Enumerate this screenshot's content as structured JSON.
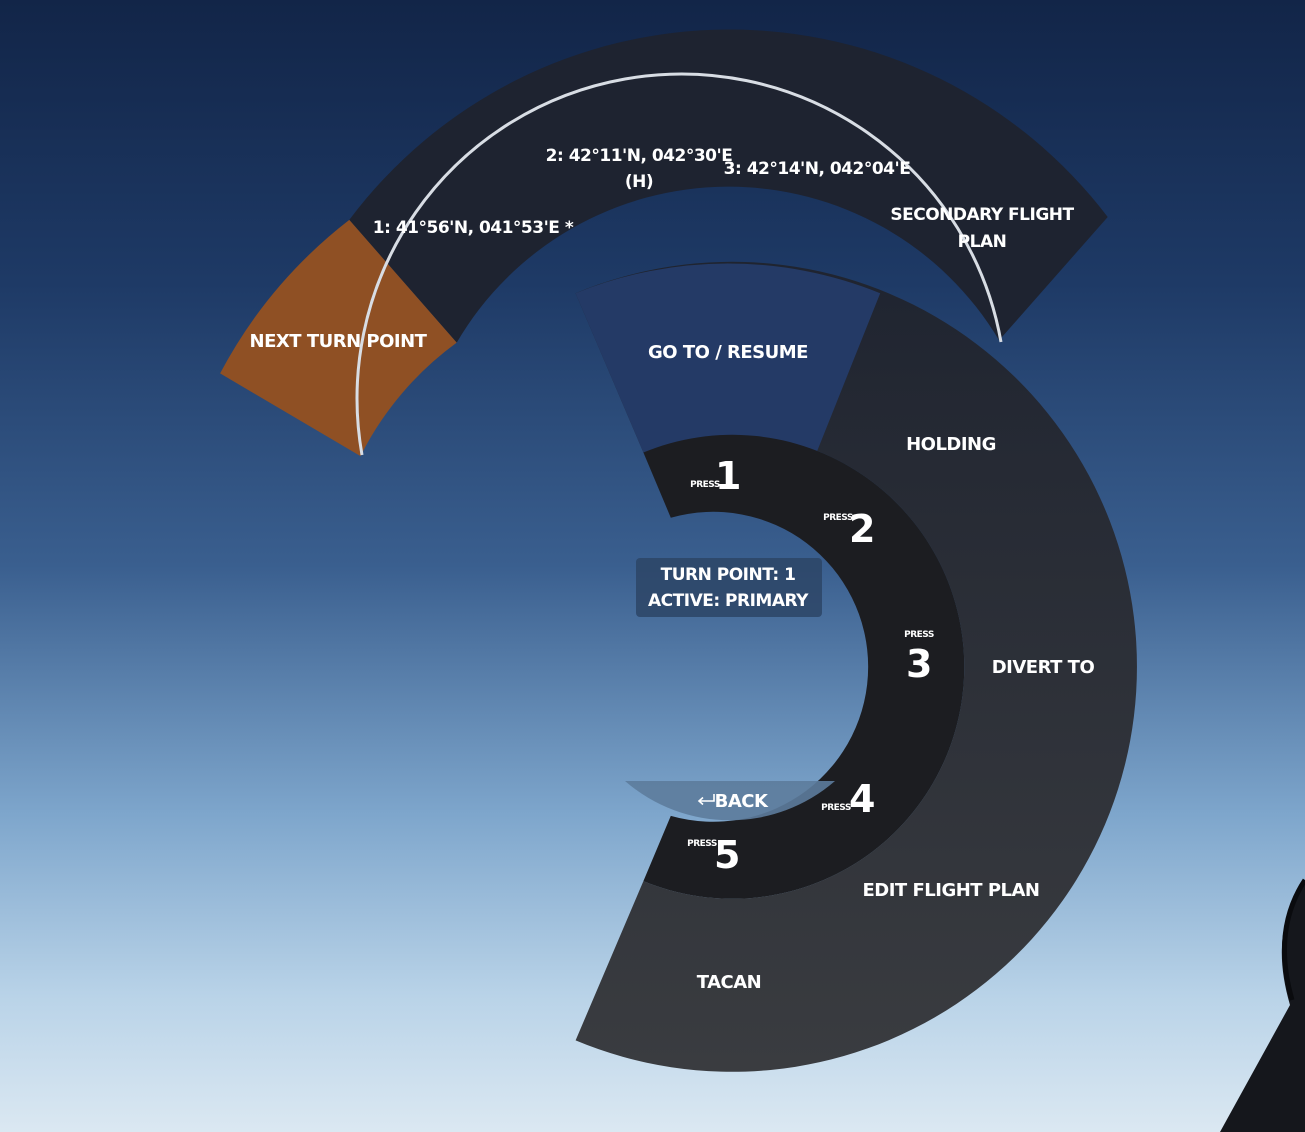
{
  "outer_ring": {
    "next_turn_point": "NEXT TURN POINT",
    "waypoint_1": "1: 41°56'N, 041°53'E *",
    "waypoint_2_line1": "2: 42°11'N, 042°30'E",
    "waypoint_2_line2": "(H)",
    "waypoint_3": "3: 42°14'N, 042°04'E",
    "secondary_line1": "SECONDARY FLIGHT",
    "secondary_line2": "PLAN"
  },
  "main_ring": {
    "go_to_resume": "GO TO / RESUME",
    "holding": "HOLDING",
    "divert_to": "DIVERT TO",
    "edit_flight_plan": "EDIT FLIGHT PLAN",
    "tacan": "TACAN"
  },
  "press_ring": {
    "press_label": "PRESS",
    "keys": [
      "1",
      "2",
      "3",
      "4",
      "5"
    ]
  },
  "center": {
    "line1": "TURN POINT: 1",
    "line2": "ACTIVE: PRIMARY"
  },
  "back": {
    "icon": "return-arrow-icon",
    "label": "BACK"
  },
  "colors": {
    "highlight": "#8f5024",
    "selected": "#233a66",
    "ring_dark": "#1d2230",
    "ring_mid": "#2b3038",
    "press_ring": "#1c1d20"
  }
}
